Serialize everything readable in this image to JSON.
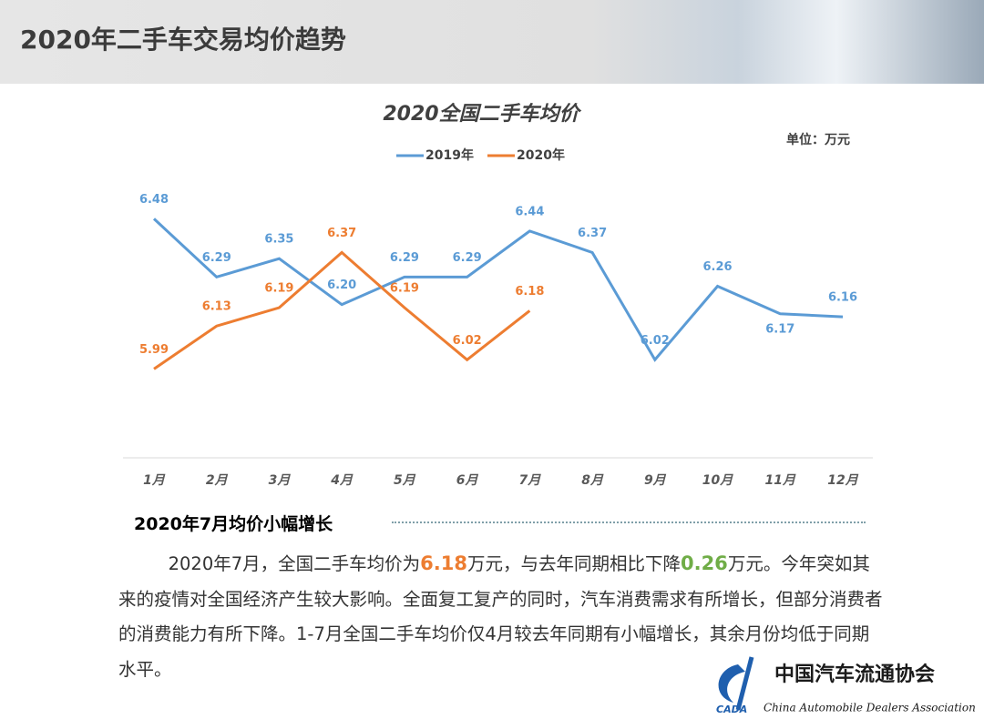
{
  "header": {
    "title": "2020年二手车交易均价趋势"
  },
  "chart_data": {
    "type": "line",
    "title": "2020全国二手车均价",
    "unit": "单位：万元",
    "categories": [
      "1月",
      "2月",
      "3月",
      "4月",
      "5月",
      "6月",
      "7月",
      "8月",
      "9月",
      "10月",
      "11月",
      "12月"
    ],
    "series": [
      {
        "name": "2019年",
        "color": "#5b9bd5",
        "values": [
          6.48,
          6.29,
          6.35,
          6.2,
          6.29,
          6.29,
          6.44,
          6.37,
          6.02,
          6.26,
          6.17,
          6.16
        ],
        "value_labels": [
          "6.48",
          "6.29",
          "6.35",
          "6.20",
          "6.29",
          "6.29",
          "6.44",
          "6.37",
          "6.02",
          "6.26",
          "6.17",
          "6.16"
        ]
      },
      {
        "name": "2020年",
        "color": "#ed7d31",
        "values": [
          5.99,
          6.13,
          6.19,
          6.37,
          6.19,
          6.02,
          6.18,
          null,
          null,
          null,
          null,
          null
        ],
        "value_labels": [
          "5.99",
          "6.13",
          "6.19",
          "6.37",
          "6.19",
          "6.02",
          "6.18",
          null,
          null,
          null,
          null,
          null
        ]
      }
    ],
    "ylim": [
      5.7,
      6.6
    ],
    "legend": "top"
  },
  "section": {
    "heading": "2020年7月均价小幅增长",
    "paragraph": [
      {
        "text": "2020年7月，全国二手车均价为"
      },
      {
        "text": "6.18",
        "color": "#ed7d31"
      },
      {
        "text": "万元，与去年同期相比下降"
      },
      {
        "text": "0.26",
        "color": "#70ad47"
      },
      {
        "text": "万元。今年突如其来的疫情对全国经济产生较大影响。全面复工复产的同时，汽车消费需求有所增长，但部分消费者的消费能力有所下降。1-7月全国二手车均价仅4月较去年同期有小幅增长，其余月份均低于同期水平。"
      }
    ]
  },
  "logo": {
    "cn": "中国汽车流通协会",
    "en": "China Automobile Dealers Association",
    "abbr": "CADA"
  }
}
